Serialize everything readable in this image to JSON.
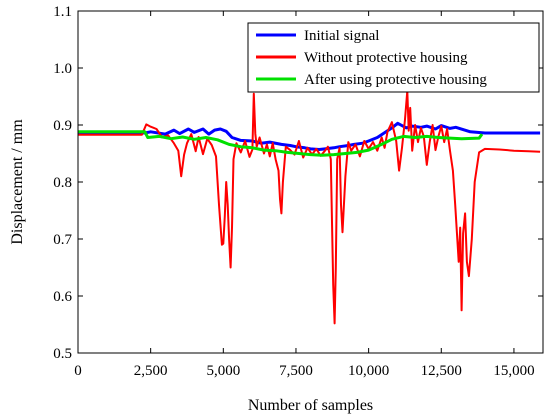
{
  "chart_data": {
    "type": "line",
    "xlabel": "Number of samples",
    "ylabel": "Displacement / mm",
    "xlim": [
      0,
      16000
    ],
    "ylim": [
      0.5,
      1.1
    ],
    "x_ticks": [
      0,
      2500,
      5000,
      7500,
      10000,
      12500,
      15000
    ],
    "x_tick_labels": [
      "0",
      "2,500",
      "5,000",
      "7,500",
      "10,000",
      "12,500",
      "15,000"
    ],
    "y_ticks": [
      0.5,
      0.6,
      0.7,
      0.8,
      0.9,
      1.0,
      1.1
    ],
    "y_tick_labels": [
      "0.5",
      "0.6",
      "0.7",
      "0.8",
      "0.9",
      "1.0",
      "1.1"
    ],
    "grid": false,
    "legend_position": "top-right",
    "series": [
      {
        "name": "Initial signal",
        "color": "#0000ff",
        "x": [
          0,
          2300,
          2500,
          3000,
          3300,
          3500,
          3800,
          4000,
          4300,
          4500,
          4700,
          4900,
          5100,
          5300,
          5600,
          6000,
          6300,
          6600,
          7000,
          7300,
          7500,
          7800,
          8000,
          8300,
          8500,
          8800,
          9000,
          9300,
          9500,
          9800,
          10000,
          10300,
          10500,
          10800,
          11000,
          11300,
          11500,
          11800,
          12000,
          12300,
          12500,
          12800,
          13000,
          13500,
          14000,
          15000,
          15900
        ],
        "values": [
          0.886,
          0.886,
          0.888,
          0.884,
          0.891,
          0.885,
          0.893,
          0.887,
          0.893,
          0.884,
          0.891,
          0.893,
          0.889,
          0.878,
          0.873,
          0.872,
          0.868,
          0.87,
          0.866,
          0.864,
          0.862,
          0.86,
          0.858,
          0.857,
          0.858,
          0.86,
          0.862,
          0.864,
          0.866,
          0.868,
          0.872,
          0.878,
          0.885,
          0.895,
          0.903,
          0.895,
          0.898,
          0.896,
          0.898,
          0.893,
          0.899,
          0.894,
          0.896,
          0.888,
          0.886,
          0.886,
          0.886
        ]
      },
      {
        "name": "Without protective housing",
        "color": "#ff0000",
        "x": [
          0,
          2200,
          2350,
          2500,
          2700,
          2900,
          3100,
          3300,
          3450,
          3550,
          3650,
          3750,
          3900,
          4050,
          4150,
          4300,
          4450,
          4600,
          4750,
          4850,
          4950,
          5000,
          5050,
          5100,
          5150,
          5200,
          5250,
          5300,
          5350,
          5450,
          5600,
          5750,
          5900,
          6000,
          6050,
          6100,
          6150,
          6250,
          6400,
          6500,
          6600,
          6700,
          6800,
          6900,
          6950,
          7000,
          7050,
          7150,
          7300,
          7450,
          7600,
          7750,
          7900,
          8050,
          8200,
          8350,
          8500,
          8600,
          8700,
          8780,
          8830,
          8870,
          8920,
          9000,
          9050,
          9100,
          9200,
          9300,
          9400,
          9550,
          9700,
          9850,
          10000,
          10150,
          10300,
          10450,
          10550,
          10650,
          10800,
          10950,
          11050,
          11150,
          11250,
          11330,
          11380,
          11430,
          11500,
          11600,
          11700,
          11800,
          11900,
          12000,
          12100,
          12200,
          12300,
          12400,
          12500,
          12600,
          12700,
          12800,
          12900,
          12980,
          13050,
          13100,
          13150,
          13200,
          13250,
          13320,
          13380,
          13450,
          13550,
          13650,
          13800,
          14000,
          14500,
          15000,
          15500,
          15900
        ],
        "values": [
          0.883,
          0.883,
          0.901,
          0.897,
          0.893,
          0.878,
          0.882,
          0.868,
          0.855,
          0.81,
          0.848,
          0.868,
          0.884,
          0.854,
          0.879,
          0.849,
          0.876,
          0.865,
          0.845,
          0.76,
          0.69,
          0.692,
          0.74,
          0.8,
          0.76,
          0.7,
          0.65,
          0.72,
          0.84,
          0.868,
          0.852,
          0.872,
          0.844,
          0.857,
          0.955,
          0.885,
          0.862,
          0.878,
          0.85,
          0.866,
          0.845,
          0.868,
          0.84,
          0.82,
          0.77,
          0.745,
          0.8,
          0.862,
          0.856,
          0.848,
          0.872,
          0.843,
          0.86,
          0.848,
          0.858,
          0.846,
          0.855,
          0.862,
          0.84,
          0.62,
          0.552,
          0.65,
          0.84,
          0.86,
          0.76,
          0.712,
          0.81,
          0.87,
          0.855,
          0.866,
          0.845,
          0.872,
          0.858,
          0.87,
          0.855,
          0.878,
          0.86,
          0.888,
          0.905,
          0.872,
          0.82,
          0.86,
          0.91,
          0.96,
          0.89,
          0.93,
          0.855,
          0.9,
          0.87,
          0.895,
          0.88,
          0.83,
          0.87,
          0.9,
          0.856,
          0.88,
          0.898,
          0.87,
          0.893,
          0.855,
          0.82,
          0.76,
          0.7,
          0.66,
          0.72,
          0.575,
          0.71,
          0.745,
          0.66,
          0.635,
          0.7,
          0.8,
          0.852,
          0.858,
          0.857,
          0.855,
          0.854,
          0.853
        ]
      },
      {
        "name": "After using protective housing",
        "color": "#00e000",
        "x": [
          0,
          2300,
          2400,
          2800,
          3200,
          3600,
          4000,
          4400,
          4800,
          5200,
          5600,
          6000,
          6400,
          6800,
          7200,
          7600,
          8000,
          8400,
          8800,
          9200,
          9600,
          10000,
          10400,
          10800,
          11200,
          11600,
          12000,
          12400,
          12800,
          13200,
          13800,
          13900
        ],
        "values": [
          0.888,
          0.888,
          0.878,
          0.88,
          0.876,
          0.879,
          0.875,
          0.878,
          0.874,
          0.866,
          0.862,
          0.86,
          0.856,
          0.855,
          0.852,
          0.85,
          0.848,
          0.847,
          0.848,
          0.85,
          0.852,
          0.856,
          0.865,
          0.875,
          0.88,
          0.878,
          0.88,
          0.878,
          0.877,
          0.876,
          0.877,
          0.884
        ]
      }
    ]
  }
}
